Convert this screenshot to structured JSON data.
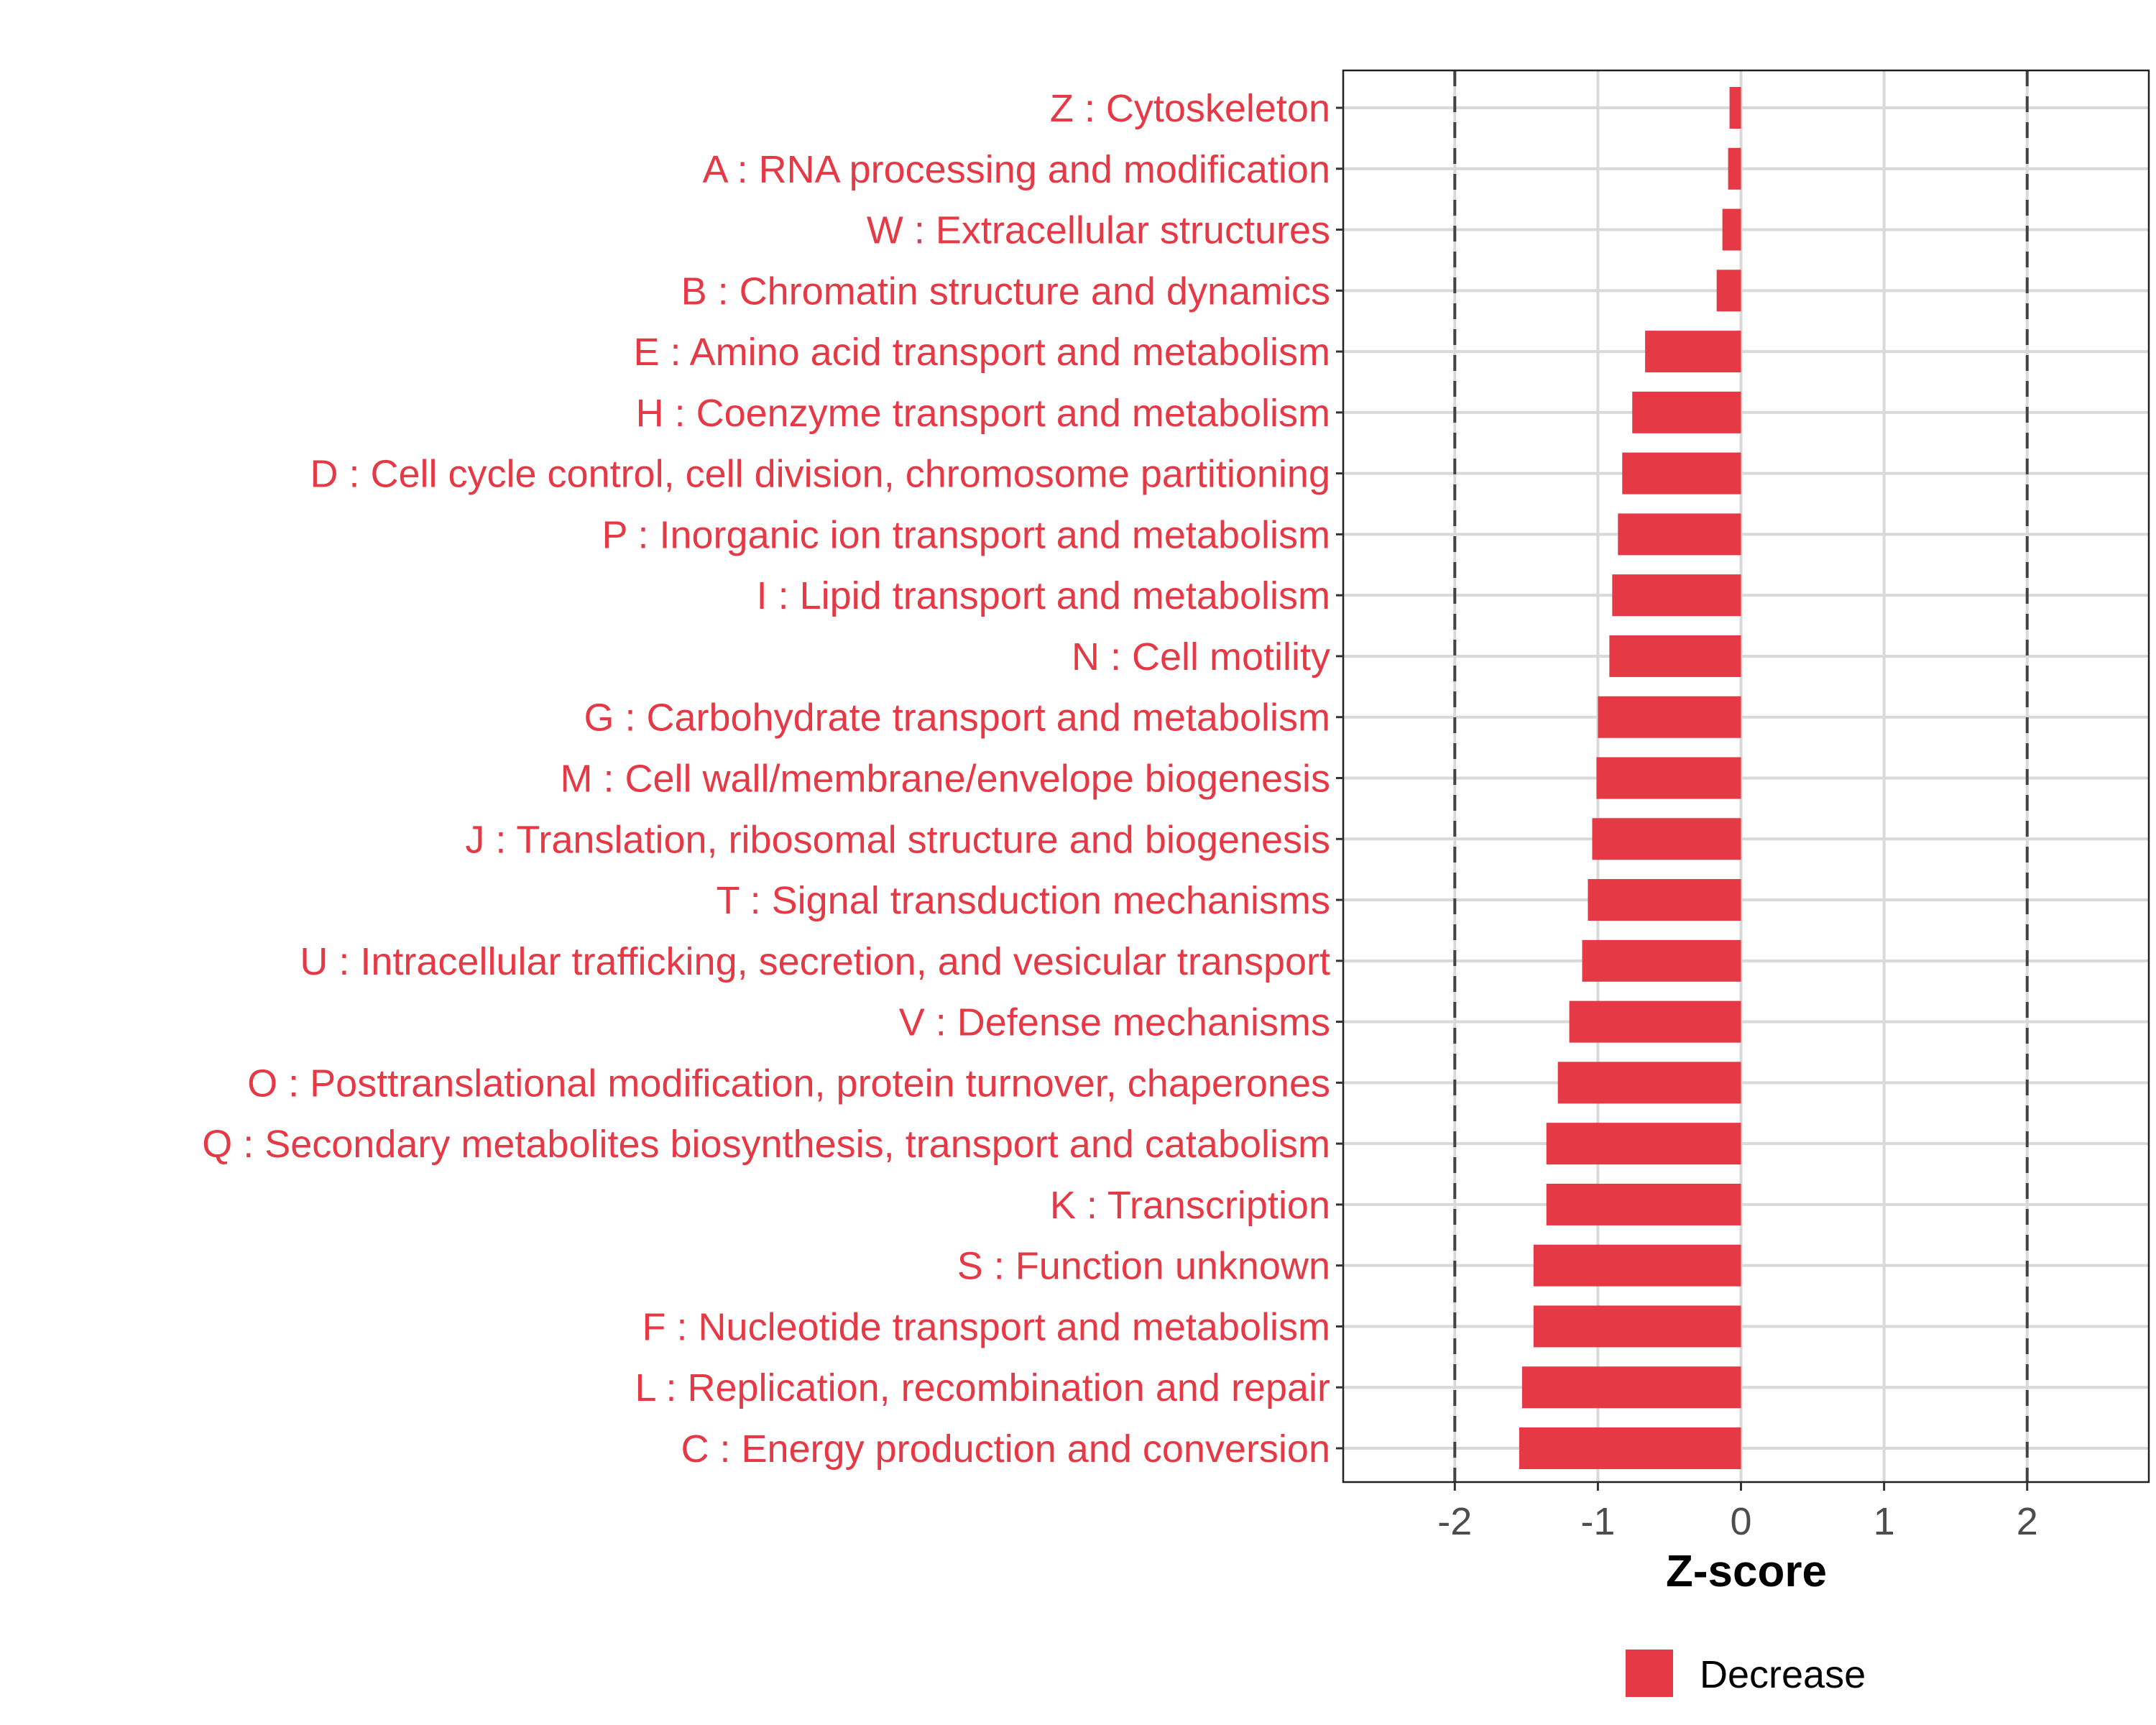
{
  "chart_data": {
    "type": "bar",
    "orientation": "horizontal",
    "title": "",
    "xlabel": "Z-score",
    "ylabel": "",
    "xlim": [
      -2.78,
      2.85
    ],
    "xticks": [
      -2,
      -1,
      0,
      1,
      2
    ],
    "xtick_labels": [
      "-2",
      "-1",
      "0",
      "1",
      "2"
    ],
    "reference_lines": [
      -2,
      2
    ],
    "grid": true,
    "legend": {
      "position": "bottom",
      "entries": [
        {
          "label": "Decrease",
          "color": "#E63946"
        }
      ]
    },
    "categories": [
      "Z : Cytoskeleton",
      "A : RNA processing and modification",
      "W : Extracellular structures",
      "B : Chromatin structure and dynamics",
      "E : Amino acid transport and metabolism",
      "H : Coenzyme transport and metabolism",
      "D : Cell cycle control, cell division, chromosome partitioning",
      "P : Inorganic ion transport and metabolism",
      "I : Lipid transport and metabolism",
      "N : Cell motility",
      "G : Carbohydrate transport and metabolism",
      "M : Cell wall/membrane/envelope biogenesis",
      "J : Translation, ribosomal structure and biogenesis",
      "T : Signal transduction mechanisms",
      "U : Intracellular trafficking, secretion, and vesicular transport",
      "V : Defense mechanisms",
      "O : Posttranslational modification, protein turnover, chaperones",
      "Q : Secondary metabolites biosynthesis, transport and catabolism",
      "K : Transcription",
      "S : Function unknown",
      "F : Nucleotide transport and metabolism",
      "L : Replication, recombination and repair",
      "C : Energy production and conversion"
    ],
    "values": [
      -0.08,
      -0.09,
      -0.13,
      -0.17,
      -0.67,
      -0.76,
      -0.83,
      -0.86,
      -0.9,
      -0.92,
      -1.0,
      -1.01,
      -1.04,
      -1.07,
      -1.11,
      -1.2,
      -1.28,
      -1.36,
      -1.36,
      -1.45,
      -1.45,
      -1.53,
      -1.55
    ],
    "colors": {
      "bar": "#E63946",
      "label": "#E63946",
      "grid": "#D9D9D9",
      "refline": "#444444",
      "tick": "#4D4D4D"
    }
  }
}
